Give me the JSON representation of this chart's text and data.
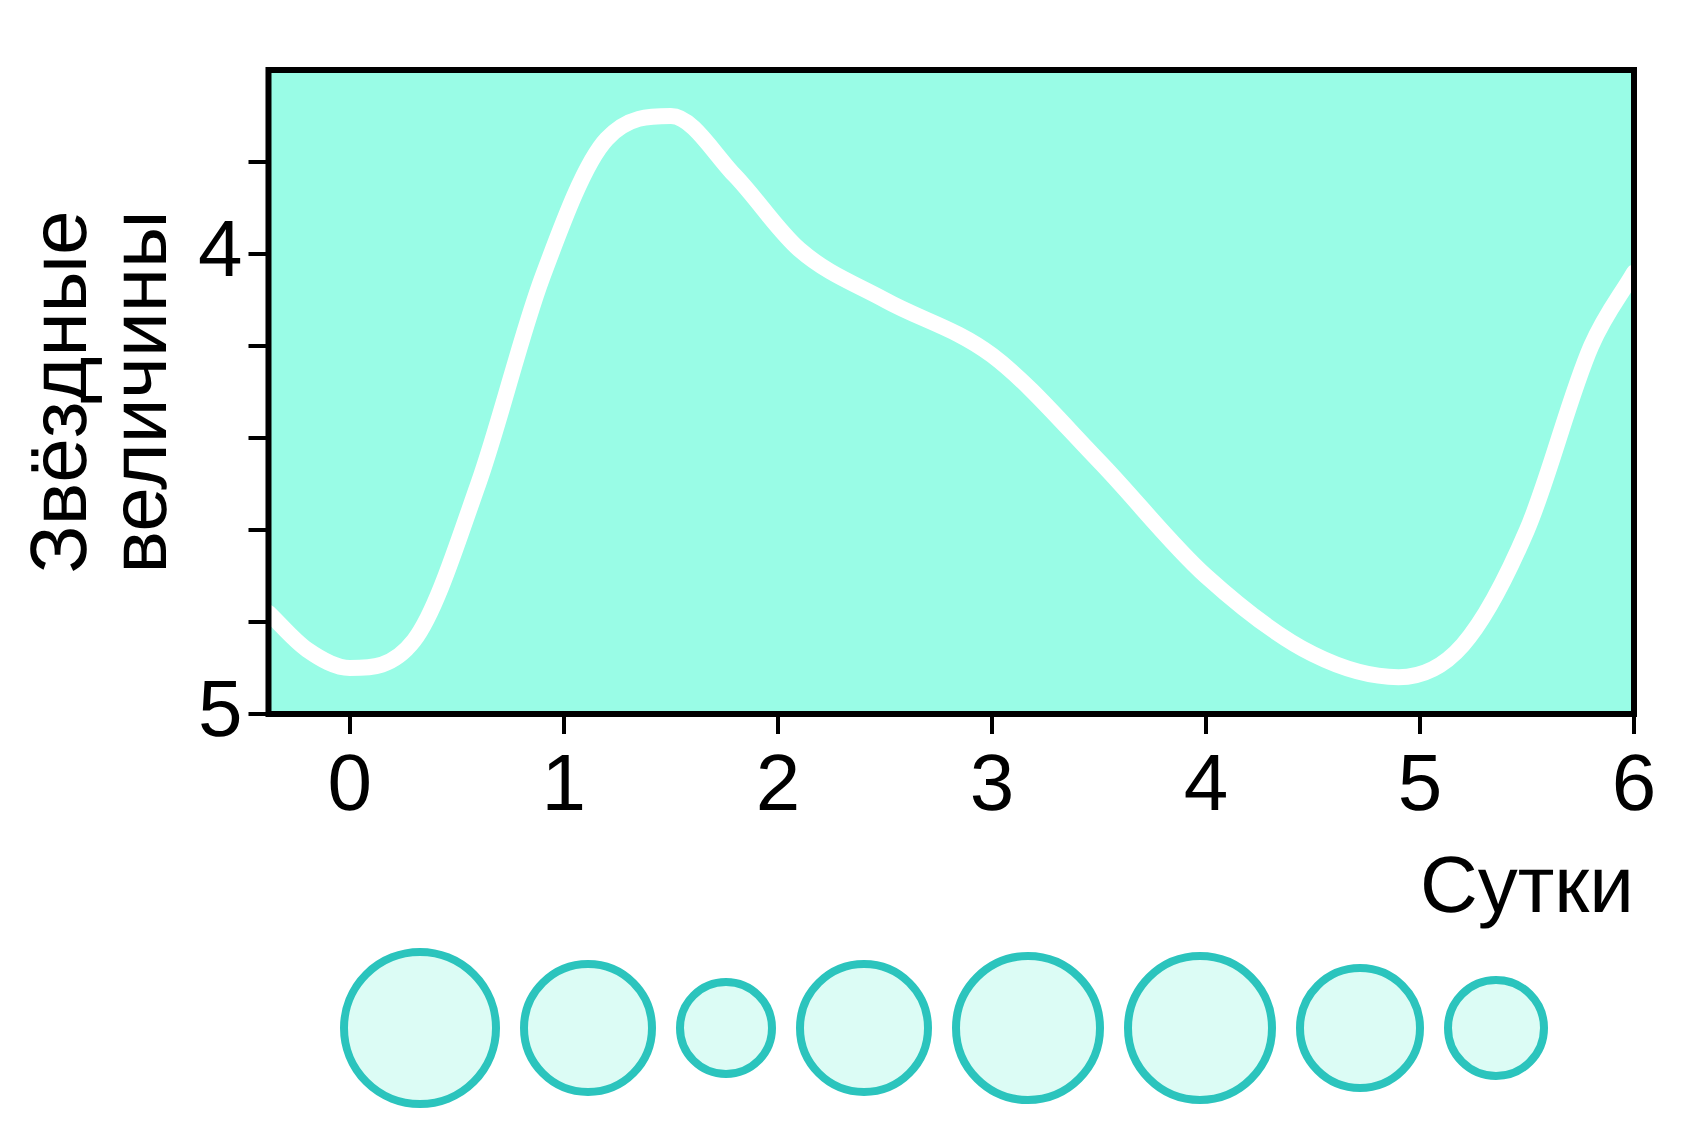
{
  "chart_data": {
    "type": "line",
    "xlabel": "Сутки",
    "ylabel": "Звёздные\nвеличины",
    "x": [
      -0.38,
      -0.2,
      0,
      0.3,
      0.6,
      0.9,
      1.2,
      1.5,
      1.8,
      2.1,
      2.5,
      3.0,
      3.5,
      4.0,
      4.5,
      4.9,
      5.2,
      5.5,
      5.8,
      6.0
    ],
    "series": [
      {
        "color": "#ffffff",
        "values": [
          4.78,
          4.86,
          4.9,
          4.84,
          4.5,
          4.05,
          3.75,
          3.7,
          3.83,
          3.99,
          4.1,
          4.22,
          4.45,
          4.7,
          4.87,
          4.92,
          4.85,
          4.6,
          4.2,
          4.04
        ]
      }
    ],
    "xlim": [
      -0.38,
      6
    ],
    "xticks": [
      0,
      1,
      2,
      3,
      4,
      5,
      6
    ],
    "ylim": [
      5,
      3.6
    ],
    "yticks": [
      5,
      {
        "value": 4.8,
        "label": null
      },
      {
        "value": 4.6,
        "label": null
      },
      {
        "value": 4.4,
        "label": null
      },
      {
        "value": 4.2,
        "label": null
      },
      4,
      {
        "value": 3.8,
        "label": null
      }
    ],
    "grid": false,
    "legend": false,
    "marker": "none",
    "line_style": "solid"
  }
}
